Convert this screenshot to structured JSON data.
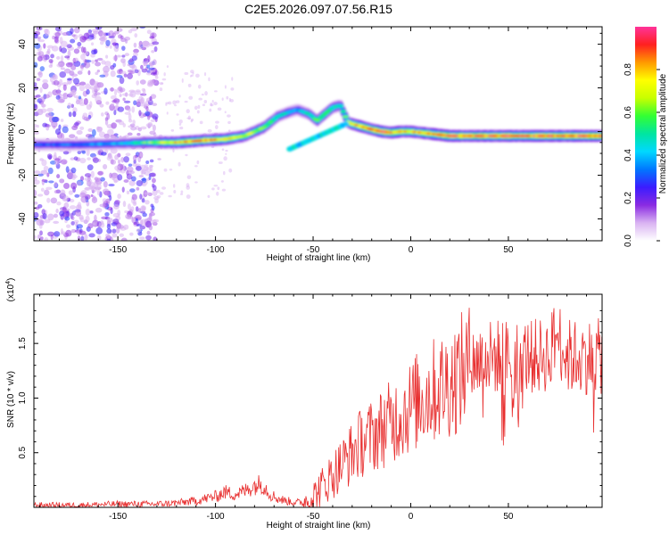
{
  "title": "C2E5.2026.097.07.56.R15",
  "chart_data": [
    {
      "type": "heatmap",
      "title": "C2E5.2026.097.07.56.R15",
      "xlabel": "Height of straight line (km)",
      "ylabel": "Frequency (Hz)",
      "xlim": [
        -193,
        98
      ],
      "ylim": [
        -50,
        48
      ],
      "xticks": [
        -150,
        -100,
        -50,
        0,
        50
      ],
      "yticks": [
        -40,
        -20,
        0,
        20,
        40
      ],
      "colorbar": {
        "label": "Normalized spectral amplitude",
        "range": [
          0,
          1
        ],
        "ticks": [
          "0.0",
          "0.2",
          "0.4",
          "0.6",
          "0.8"
        ],
        "tick_values": [
          0.0,
          0.2,
          0.4,
          0.6,
          0.8
        ],
        "colors": [
          "#ffffff",
          "#d9b3f2",
          "#8a2be2",
          "#3b1cff",
          "#0077ff",
          "#00d8ff",
          "#00e5a0",
          "#33ff33",
          "#c8ff00",
          "#ffff00",
          "#ff9900",
          "#ff2020",
          "#ff3399"
        ]
      },
      "ridge": {
        "x": [
          -193,
          -170,
          -150,
          -135,
          -120,
          -105,
          -95,
          -85,
          -75,
          -68,
          -62,
          -58,
          -52,
          -48,
          -44,
          -40,
          -36,
          -32,
          -28,
          -24,
          -20,
          -15,
          -10,
          -5,
          0,
          10,
          20,
          30,
          40,
          50,
          60,
          70,
          80,
          90,
          98
        ],
        "freq": [
          -6,
          -6,
          -5.5,
          -5,
          -5,
          -4,
          -3.5,
          -2,
          2,
          7,
          9,
          10,
          8,
          5,
          8,
          11,
          12,
          4,
          3,
          2,
          1,
          0,
          -0.5,
          0,
          0,
          -1,
          -2,
          -2,
          -2,
          -2,
          -2,
          -2,
          -2,
          -2,
          -2
        ],
        "amplitude": [
          0.3,
          0.35,
          0.4,
          0.6,
          0.8,
          0.85,
          0.8,
          0.7,
          0.6,
          0.5,
          0.45,
          0.4,
          0.5,
          0.6,
          0.55,
          0.5,
          0.5,
          0.7,
          0.8,
          0.85,
          0.9,
          0.92,
          0.9,
          0.85,
          0.8,
          0.85,
          0.9,
          0.88,
          0.9,
          0.92,
          0.9,
          0.92,
          0.9,
          0.92,
          0.92
        ]
      },
      "noise_region_x": [
        -193,
        -130
      ]
    },
    {
      "type": "line",
      "xlabel": "Height of straight line (km)",
      "ylabel": "SNR (10 * v/v)",
      "y_multiplier": "(x10",
      "y_multiplier_exp": "4",
      "y_multiplier_close": ")",
      "xlim": [
        -193,
        98
      ],
      "ylim": [
        0,
        1.95
      ],
      "xticks": [
        -150,
        -100,
        -50,
        0,
        50
      ],
      "yticks": [
        0.5,
        1.0,
        1.5
      ],
      "ytick_labels": [
        "0.5",
        "1.0",
        "1.5"
      ],
      "color": "#e83030",
      "series": [
        {
          "name": "SNR",
          "x": [
            -193,
            -170,
            -150,
            -130,
            -120,
            -110,
            -100,
            -95,
            -90,
            -85,
            -80,
            -76,
            -72,
            -68,
            -64,
            -60,
            -55,
            -50,
            -45,
            -40,
            -35,
            -30,
            -25,
            -20,
            -15,
            -10,
            -5,
            0,
            5,
            10,
            15,
            20,
            25,
            30,
            35,
            40,
            45,
            50,
            55,
            60,
            65,
            70,
            73,
            75,
            78,
            80,
            85,
            90,
            95,
            98
          ],
          "values": [
            0.02,
            0.02,
            0.03,
            0.03,
            0.04,
            0.06,
            0.1,
            0.14,
            0.12,
            0.15,
            0.2,
            0.22,
            0.12,
            0.08,
            0.06,
            0.05,
            0.04,
            0.1,
            0.2,
            0.3,
            0.4,
            0.5,
            0.6,
            0.65,
            0.72,
            0.78,
            0.85,
            0.92,
            1.0,
            1.05,
            1.1,
            1.15,
            1.22,
            1.3,
            1.35,
            1.37,
            1.38,
            1.38,
            1.38,
            1.38,
            1.38,
            1.4,
            1.5,
            1.6,
            1.45,
            1.38,
            1.38,
            1.38,
            1.38,
            1.38
          ]
        }
      ]
    }
  ]
}
